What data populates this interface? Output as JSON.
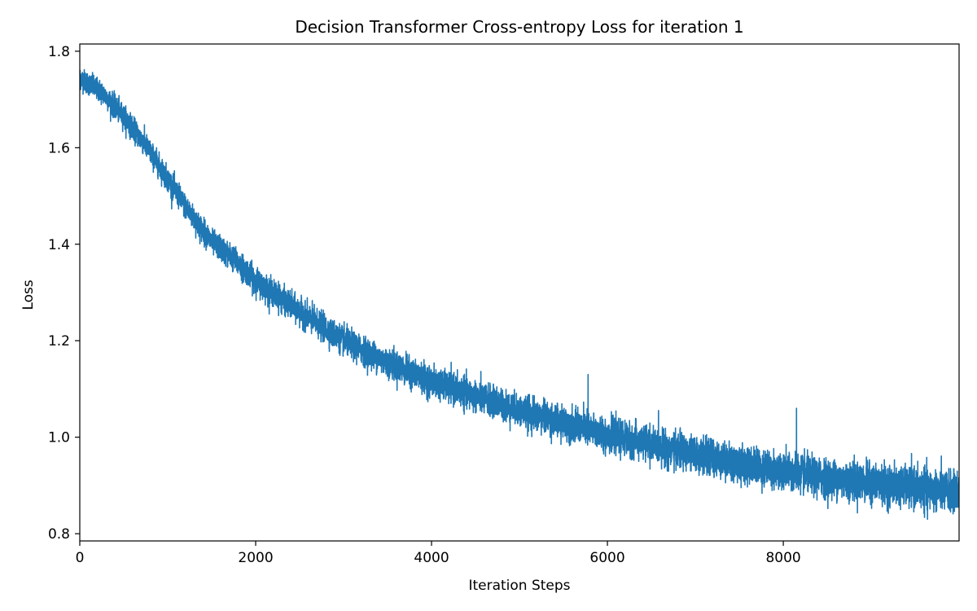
{
  "chart_data": {
    "type": "line",
    "title": "Decision Transformer Cross-entropy Loss for iteration 1",
    "xlabel": "Iteration Steps",
    "ylabel": "Loss",
    "xlim": [
      0,
      9999
    ],
    "ylim": [
      0.785,
      1.815
    ],
    "xticks": [
      0,
      2000,
      4000,
      6000,
      8000
    ],
    "xtick_labels": [
      "0",
      "2000",
      "4000",
      "6000",
      "8000"
    ],
    "yticks": [
      0.8,
      1.0,
      1.2,
      1.4,
      1.6,
      1.8
    ],
    "ytick_labels": [
      "0.8",
      "1.0",
      "1.2",
      "1.4",
      "1.6",
      "1.8"
    ],
    "grid": false,
    "legend": "none",
    "series": [
      {
        "color": "#1f77b4",
        "approx_trend_x": [
          0,
          250,
          500,
          750,
          1000,
          1250,
          1500,
          1750,
          2000,
          2500,
          3000,
          3500,
          4000,
          4500,
          5000,
          5500,
          6000,
          6500,
          7000,
          7500,
          8000,
          8500,
          9000,
          9500,
          9999
        ],
        "approx_trend_y": [
          1.745,
          1.715,
          1.665,
          1.605,
          1.535,
          1.465,
          1.405,
          1.37,
          1.325,
          1.26,
          1.2,
          1.155,
          1.115,
          1.085,
          1.055,
          1.03,
          1.005,
          0.985,
          0.965,
          0.945,
          0.93,
          0.915,
          0.905,
          0.895,
          0.885
        ],
        "noise_band_halfwidth": [
          0.025,
          0.03,
          0.035,
          0.04,
          0.045
        ],
        "outlier_spikes": [
          {
            "x": 5780,
            "y": 1.13
          },
          {
            "x": 8150,
            "y": 1.06
          },
          {
            "x": 9640,
            "y": 0.83
          }
        ],
        "num_points": 10000
      }
    ]
  }
}
